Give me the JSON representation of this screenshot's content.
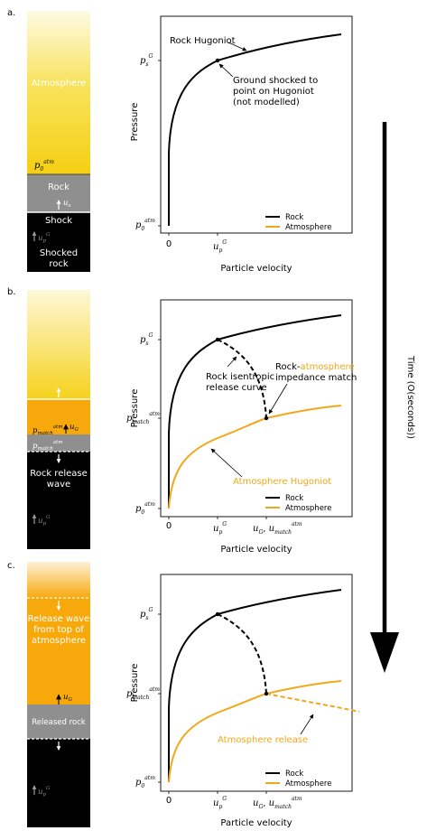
{
  "colors": {
    "rock": "#000000",
    "atmosphere": "#f0a81b",
    "column_yellow": "#f6d21c",
    "column_orange": "#f7a90c",
    "rock_gray": "#8f8f8f"
  },
  "time_axis": {
    "label": "Time (O(seconds))"
  },
  "panels": [
    {
      "letter": "a.",
      "column": {
        "atmosphere": "Atmosphere",
        "p0": "p",
        "p0_sup": "atm",
        "p0_sub": "0",
        "rock": "Rock",
        "us": "u",
        "us_sub": "s",
        "shock": "Shock",
        "up": "u",
        "up_sub": "p",
        "up_sup": "G",
        "shocked_rock": "Shocked\nrock"
      },
      "plot": {
        "ylabel": "Pressure",
        "xlabel": "Particle velocity",
        "ytick_top": "p",
        "ytick_top_sub": "s",
        "ytick_top_sup": "G",
        "ytick_bottom": "p",
        "ytick_bottom_sub": "0",
        "ytick_bottom_sup": "atm",
        "xtick0": "0",
        "xtick1": "u",
        "xtick1_sub": "p",
        "xtick1_sup": "G",
        "annotation_hugoniot": "Rock Hugoniot",
        "annotation_ground": "Ground shocked to\npoint on Hugoniot\n(not modelled)",
        "legend": [
          "Rock",
          "Atmosphere"
        ]
      }
    },
    {
      "letter": "b.",
      "column": {
        "pmatch": "p",
        "pmatch_sup": "atm",
        "pmatch_sub": "match",
        "uG": "u",
        "uG_sub": "G",
        "pmatch2": "p",
        "pmatch2_sup": "atm",
        "pmatch2_sub": "match",
        "rock_release": "Rock release\nwave",
        "up": "u",
        "up_sub": "p",
        "up_sup": "G"
      },
      "plot": {
        "ylabel": "Pressure",
        "xlabel": "Particle velocity",
        "ytick_top": "p",
        "ytick_top_sub": "s",
        "ytick_top_sup": "G",
        "ytick_mid": "p",
        "ytick_mid_sub": "match",
        "ytick_mid_sup": "atm",
        "ytick_bottom": "p",
        "ytick_bottom_sub": "0",
        "ytick_bottom_sup": "atm",
        "xtick0": "0",
        "xtick1": "u",
        "xtick1_sub": "p",
        "xtick1_sup": "G",
        "xtick2": "u",
        "xtick2_sub": "G",
        "xtick2b": ", u",
        "xtick2b_sub": "match",
        "xtick2b_sup": "atm",
        "annotation_release": "Rock isentropic\nrelease curve",
        "annotation_match_a": "Rock-",
        "annotation_match_b": "atmosphere",
        "annotation_match_c": "impedance match",
        "annotation_atm_hugoniot": "Atmosphere Hugoniot",
        "legend": [
          "Rock",
          "Atmosphere"
        ]
      }
    },
    {
      "letter": "c.",
      "column": {
        "release_top": "Release wave\nfrom top of\natmosphere",
        "uG": "u",
        "uG_sub": "G",
        "released_rock": "Released rock",
        "up": "u",
        "up_sub": "p",
        "up_sup": "G"
      },
      "plot": {
        "ylabel": "Pressure",
        "xlabel": "Particle velocity",
        "ytick_top": "p",
        "ytick_top_sub": "s",
        "ytick_top_sup": "G",
        "ytick_mid": "p",
        "ytick_mid_sub": "match",
        "ytick_mid_sup": "atm",
        "ytick_bottom": "p",
        "ytick_bottom_sub": "0",
        "ytick_bottom_sup": "atm",
        "xtick0": "0",
        "xtick1": "u",
        "xtick1_sub": "p",
        "xtick1_sup": "G",
        "xtick2": "u",
        "xtick2_sub": "G",
        "xtick2b": ", u",
        "xtick2b_sub": "match",
        "xtick2b_sup": "atm",
        "annotation_atm_release": "Atmosphere release",
        "legend": [
          "Rock",
          "Atmosphere"
        ]
      }
    }
  ]
}
